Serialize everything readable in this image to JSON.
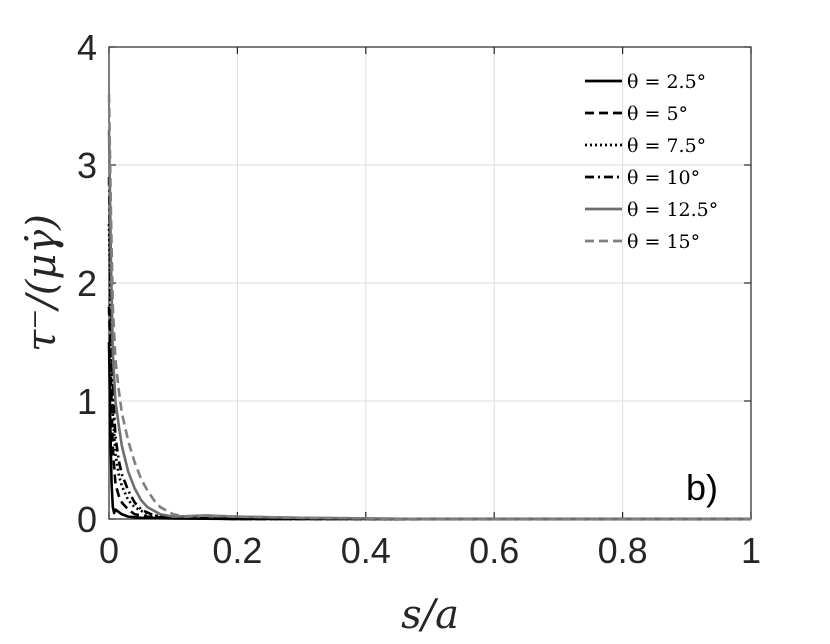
{
  "chart_data": {
    "type": "line",
    "xlabel": "s/a",
    "ylabel": "τ⁻/(μγ̇)",
    "xlim": [
      0,
      1
    ],
    "ylim": [
      0,
      4
    ],
    "xticks": [
      0,
      0.2,
      0.4,
      0.6,
      0.8,
      1
    ],
    "yticks": [
      0,
      1,
      2,
      3,
      4
    ],
    "xtick_labels": [
      "0",
      "0.2",
      "0.4",
      "0.6",
      "0.8",
      "1"
    ],
    "ytick_labels": [
      "0",
      "1",
      "2",
      "3",
      "4"
    ],
    "grid": true,
    "legend_position": "top-right",
    "panel_label": "b)",
    "series": [
      {
        "name": "θ = 2.5°",
        "color": "#000000",
        "dash": "solid",
        "x": [
          0,
          0.002,
          0.004,
          0.006,
          0.008,
          0.01,
          0.015,
          0.02,
          0.03,
          0.05,
          0.1,
          0.2,
          0.4,
          0.6,
          0.8,
          1.0
        ],
        "y": [
          1.5,
          0.8,
          0.3,
          0.1,
          0.05,
          0.08,
          0.06,
          0.04,
          0.02,
          0.01,
          0.005,
          0,
          0,
          0,
          0,
          0
        ]
      },
      {
        "name": "θ = 5°",
        "color": "#000000",
        "dash": "dashed",
        "x": [
          0,
          0.003,
          0.006,
          0.01,
          0.015,
          0.02,
          0.03,
          0.04,
          0.06,
          0.1,
          0.2,
          0.4,
          0.6,
          0.8,
          1.0
        ],
        "y": [
          1.8,
          1.2,
          0.6,
          0.3,
          0.2,
          0.14,
          0.08,
          0.04,
          0.02,
          0.01,
          0,
          0,
          0,
          0,
          0
        ]
      },
      {
        "name": "θ = 7.5°",
        "color": "#000000",
        "dash": "dotted",
        "x": [
          0,
          0.003,
          0.006,
          0.01,
          0.015,
          0.02,
          0.03,
          0.04,
          0.06,
          0.08,
          0.1,
          0.2,
          0.4,
          0.6,
          0.8,
          1.0
        ],
        "y": [
          2.5,
          1.6,
          0.9,
          0.55,
          0.38,
          0.28,
          0.16,
          0.1,
          0.04,
          0.02,
          0.01,
          0,
          0,
          0,
          0,
          0
        ]
      },
      {
        "name": "θ = 10°",
        "color": "#000000",
        "dash": "dashdot",
        "x": [
          0,
          0.003,
          0.006,
          0.01,
          0.015,
          0.02,
          0.03,
          0.04,
          0.05,
          0.07,
          0.1,
          0.2,
          0.4,
          0.6,
          0.8,
          1.0
        ],
        "y": [
          2.9,
          1.9,
          1.1,
          0.7,
          0.5,
          0.38,
          0.24,
          0.14,
          0.08,
          0.03,
          0.01,
          0,
          0,
          0,
          0,
          0
        ]
      },
      {
        "name": "θ = 12.5°",
        "color": "#6e6e6e",
        "dash": "solid",
        "x": [
          0,
          0.003,
          0.006,
          0.01,
          0.015,
          0.02,
          0.03,
          0.04,
          0.05,
          0.06,
          0.08,
          0.1,
          0.15,
          0.2,
          0.3,
          0.5,
          0.7,
          1.0
        ],
        "y": [
          3.3,
          2.2,
          1.4,
          1.0,
          0.8,
          0.62,
          0.4,
          0.26,
          0.16,
          0.1,
          0.04,
          0.02,
          0.03,
          0.02,
          0.01,
          0,
          0,
          0
        ]
      },
      {
        "name": "θ = 15°",
        "color": "#7f7f7f",
        "dash": "dashed",
        "x": [
          0,
          0.003,
          0.006,
          0.01,
          0.015,
          0.02,
          0.03,
          0.04,
          0.05,
          0.06,
          0.07,
          0.08,
          0.1,
          0.12,
          0.15,
          0.2,
          0.3,
          0.5,
          0.7,
          1.0
        ],
        "y": [
          3.6,
          2.6,
          1.8,
          1.35,
          1.1,
          0.9,
          0.66,
          0.48,
          0.34,
          0.24,
          0.16,
          0.1,
          0.04,
          0.02,
          0.03,
          0.02,
          0.01,
          0,
          0,
          0
        ]
      }
    ]
  }
}
